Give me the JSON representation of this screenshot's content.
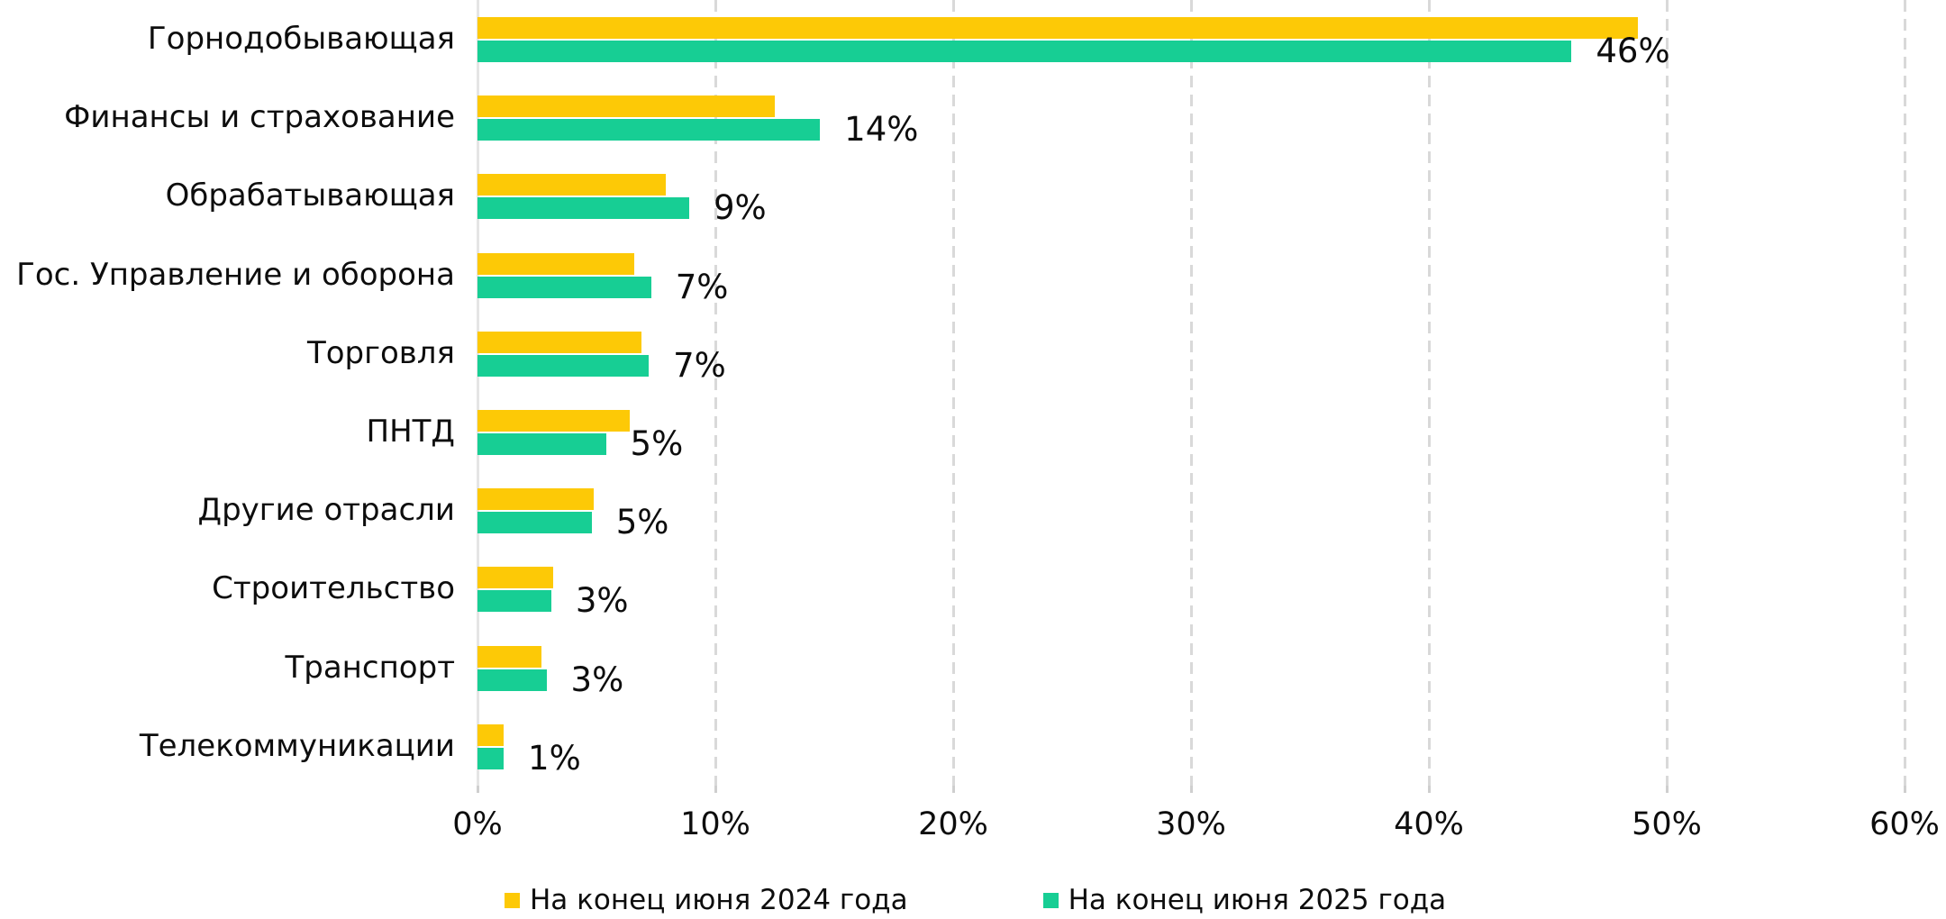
{
  "chart_data": {
    "type": "bar",
    "orientation": "horizontal",
    "title": "",
    "xlabel": "",
    "ylabel": "",
    "xlim": [
      0,
      60
    ],
    "x_tick_labels": [
      "0%",
      "10%",
      "20%",
      "30%",
      "40%",
      "50%",
      "60%"
    ],
    "x_tick_values": [
      0,
      10,
      20,
      30,
      40,
      50,
      60
    ],
    "grid": "vertical-dashed",
    "legend_position": "bottom",
    "categories": [
      "Горнодобывающая",
      "Финансы и страхование",
      "Обрабатывающая",
      "Гос. Управление и оборона",
      "Торговля",
      "ПНТД",
      "Другие отрасли",
      "Строительство",
      "Транспорт",
      "Телекоммуникации"
    ],
    "series": [
      {
        "name": "На конец июня 2024 года",
        "color": "#FDC906",
        "values": [
          48.8,
          12.5,
          7.9,
          6.6,
          6.9,
          6.4,
          4.9,
          3.2,
          2.7,
          1.1
        ]
      },
      {
        "name": "На конец июня 2025 года",
        "color": "#17CE94",
        "values": [
          46.0,
          14.4,
          8.9,
          7.3,
          7.2,
          5.4,
          4.8,
          3.1,
          2.9,
          1.1
        ]
      }
    ],
    "value_labels": [
      "46%",
      "14%",
      "9%",
      "7%",
      "7%",
      "5%",
      "5%",
      "3%",
      "3%",
      "1%"
    ],
    "colors": {
      "grid_dashed": "#d9d9d9",
      "axis_line": "#e5e5e5",
      "text": "#0d0d0d"
    }
  }
}
